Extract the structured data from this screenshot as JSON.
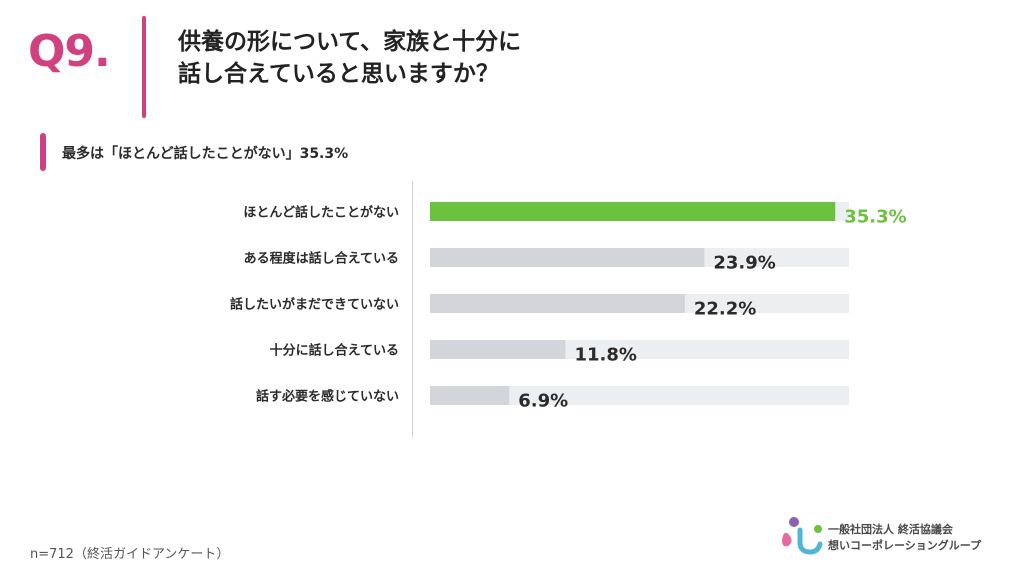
{
  "question": {
    "number": "Q9.",
    "title_line1": "供養の形について、家族と十分に",
    "title_line2": "話し合えていると思いますか？"
  },
  "summary": "最多は「ほとんど話したことがない」35.3%",
  "footnote": "n=712（終活ガイドアンケート）",
  "logo": {
    "line1": "一般社団法人 終活協議会",
    "line2": "想いコーポレーショングループ"
  },
  "colors": {
    "accent": "#d1407f",
    "highlight_bar": "#6cc13f",
    "bar": "#d2d5da",
    "track": "#eceff2",
    "label": "#2b2b2b"
  },
  "chart_data": {
    "type": "bar",
    "orientation": "horizontal",
    "categories": [
      "ほとんど話したことがない",
      "ある程度は話し合えている",
      "話したいがまだできていない",
      "十分に話し合えている",
      "話す必要を感じていない"
    ],
    "values": [
      35.3,
      23.9,
      22.2,
      11.8,
      6.9
    ],
    "value_labels": [
      "35.3%",
      "23.9%",
      "22.2%",
      "11.8%",
      "6.9%"
    ],
    "unit": "%",
    "xlim": [
      0,
      36.5
    ],
    "highlight_index": 0
  }
}
